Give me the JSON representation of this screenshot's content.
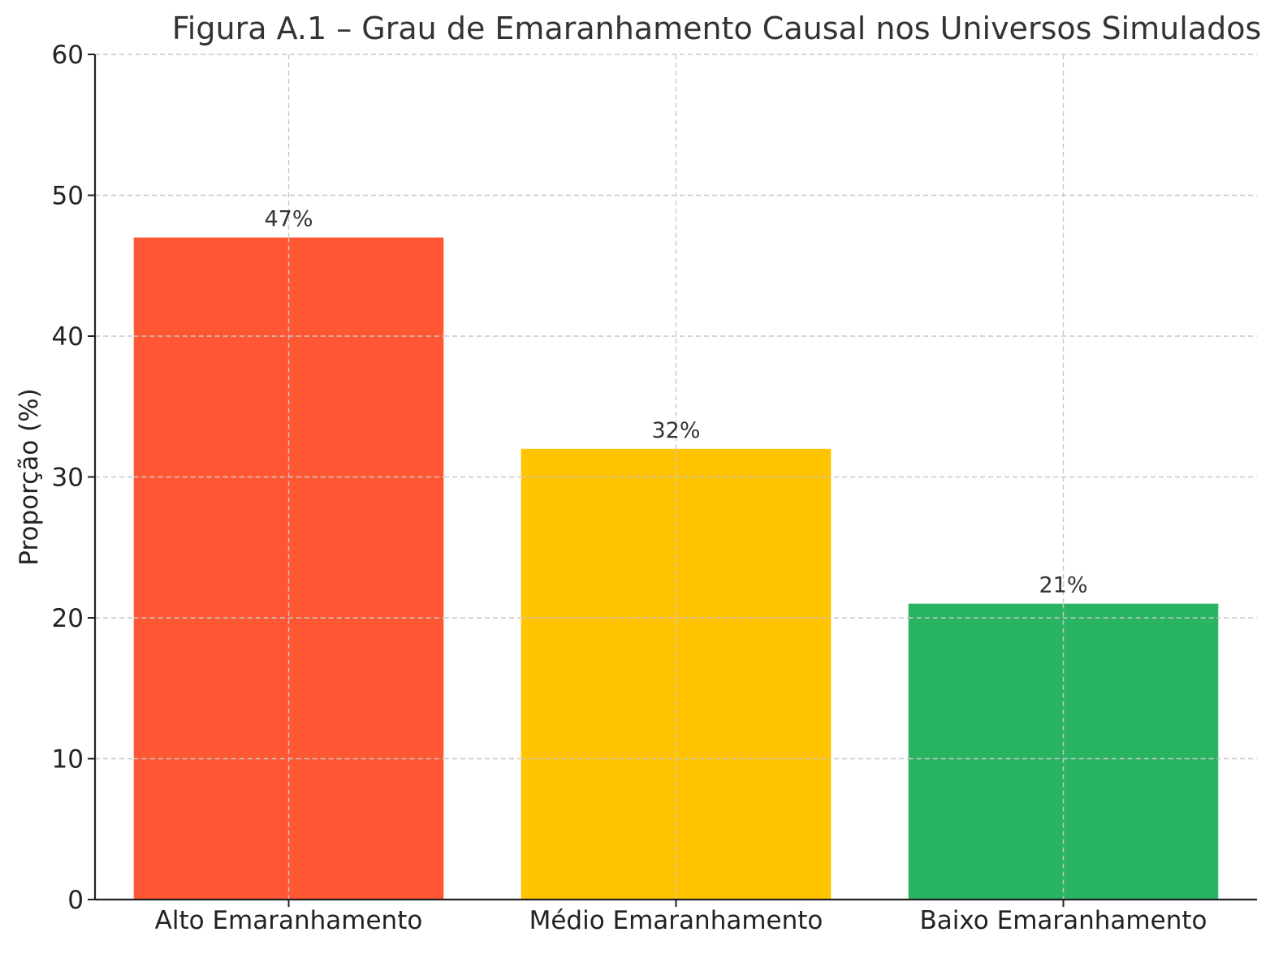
{
  "chart_data": {
    "type": "bar",
    "title": "Figura A.1 – Grau de Emaranhamento Causal nos Universos Simulados",
    "ylabel": "Proporção (%)",
    "xlabel": "",
    "categories": [
      "Alto Emaranhamento",
      "Médio Emaranhamento",
      "Baixo Emaranhamento"
    ],
    "values": [
      47,
      32,
      21
    ],
    "value_labels": [
      "47%",
      "32%",
      "21%"
    ],
    "colors": [
      "#ff5733",
      "#ffc300",
      "#28b463"
    ],
    "ylim": [
      0,
      60
    ],
    "yticks": [
      0,
      10,
      20,
      30,
      40,
      50,
      60
    ],
    "grid": true
  }
}
